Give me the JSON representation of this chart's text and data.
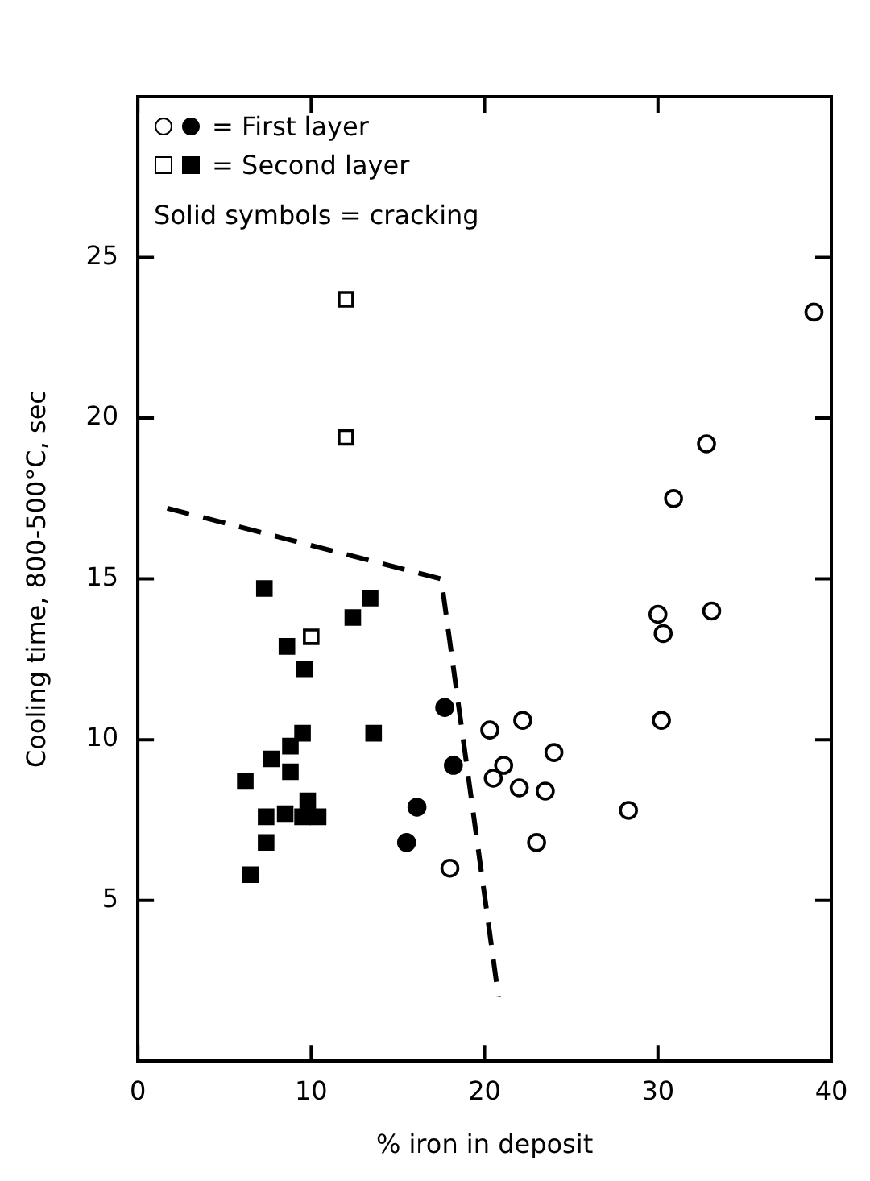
{
  "chart_data": {
    "type": "scatter",
    "xlabel": "% iron in deposit",
    "ylabel": "Cooling time, 800-500°C, sec",
    "xlim": [
      0,
      40
    ],
    "xticks": [
      0,
      10,
      20,
      30,
      40
    ],
    "ylim": [
      0,
      30
    ],
    "yticks": [
      5,
      10,
      15,
      20,
      25
    ],
    "grid": false,
    "legend": "top left",
    "annotations": [
      "Solid symbols = cracking"
    ],
    "series": [
      {
        "marker": "circle",
        "color": "#ffffff",
        "x": [
          18.0,
          39.0,
          32.8,
          30.9,
          30.0,
          30.3,
          33.1,
          30.2,
          20.3,
          22.2,
          24.0,
          21.1,
          20.5,
          22.0,
          23.5,
          28.3,
          23.0
        ],
        "values": [
          6.0,
          23.3,
          19.2,
          17.5,
          13.9,
          13.3,
          14.0,
          10.6,
          10.3,
          10.6,
          9.6,
          9.2,
          8.8,
          8.5,
          8.4,
          7.8,
          6.8
        ]
      },
      {
        "name": "= First layer",
        "marker": "circle",
        "color": "#000000",
        "x": [
          17.7,
          18.2,
          16.1,
          15.5
        ],
        "values": [
          11.0,
          9.2,
          7.9,
          6.8
        ]
      },
      {
        "marker": "square",
        "color": "#ffffff",
        "x": [
          12.0,
          12.0,
          10.0
        ],
        "values": [
          23.7,
          19.4,
          13.2
        ]
      },
      {
        "name": "= Second layer",
        "marker": "square",
        "color": "#000000",
        "x": [
          7.3,
          13.4,
          12.4,
          8.6,
          9.6,
          13.6,
          9.5,
          8.8,
          7.7,
          8.8,
          6.2,
          9.8,
          7.4,
          8.5,
          9.5,
          10.4,
          7.4,
          6.5
        ],
        "values": [
          14.7,
          14.4,
          13.8,
          12.9,
          12.2,
          10.2,
          10.2,
          9.8,
          9.4,
          9.0,
          8.7,
          8.1,
          7.6,
          7.7,
          7.6,
          7.6,
          6.8,
          5.8
        ]
      },
      {
        "type": "line",
        "marker": "none",
        "line_style": "dashed",
        "color": "#000000",
        "x": [
          1.7,
          17.5,
          20.8
        ],
        "values": [
          17.2,
          15.0,
          2
        ]
      }
    ]
  }
}
